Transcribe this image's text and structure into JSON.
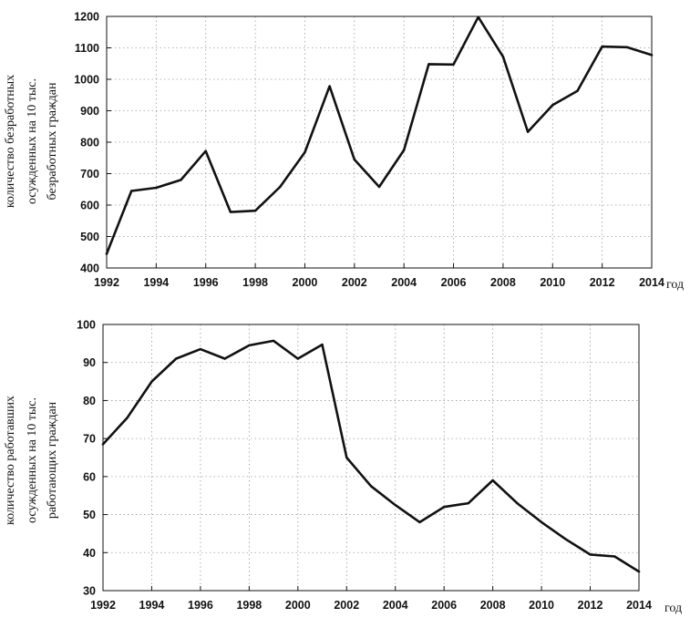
{
  "chart_data": [
    {
      "type": "line",
      "xlabel": "год",
      "ylabel": [
        "количество безработных",
        "осужденных на 10 тыс.",
        "безработных граждан"
      ],
      "xlim": [
        1992,
        2014
      ],
      "ylim": [
        400,
        1200
      ],
      "xticks": [
        "1992",
        "1994",
        "1996",
        "1998",
        "2000",
        "2002",
        "2004",
        "2006",
        "2008",
        "2010",
        "2012",
        "2014"
      ],
      "yticks": [
        "400",
        "500",
        "600",
        "700",
        "800",
        "900",
        "1000",
        "1100",
        "1200"
      ],
      "grid": true,
      "series": [
        {
          "x": [
            1992,
            1993,
            1994,
            1995,
            1996,
            1997,
            1998,
            1999,
            2000,
            2001,
            2002,
            2003,
            2004,
            2005,
            2006,
            2007,
            2008,
            2009,
            2010,
            2011,
            2012,
            2013,
            2014
          ],
          "values": [
            445,
            645,
            655,
            680,
            772,
            578,
            582,
            658,
            768,
            978,
            745,
            658,
            775,
            1048,
            1047,
            1198,
            1072,
            833,
            918,
            963,
            1104,
            1102,
            1077
          ]
        }
      ]
    },
    {
      "type": "line",
      "xlabel": "год",
      "ylabel": [
        "количество работавших",
        "осужденных на 10 тыс.",
        "работающих граждан"
      ],
      "xlim": [
        1992,
        2014
      ],
      "ylim": [
        30,
        100
      ],
      "xticks": [
        "1992",
        "1994",
        "1996",
        "1998",
        "2000",
        "2002",
        "2004",
        "2006",
        "2008",
        "2010",
        "2012",
        "2014"
      ],
      "yticks": [
        "30",
        "40",
        "50",
        "60",
        "70",
        "80",
        "90",
        "100"
      ],
      "grid": true,
      "series": [
        {
          "x": [
            1992,
            1993,
            1994,
            1995,
            1996,
            1997,
            1998,
            1999,
            2000,
            2001,
            2002,
            2003,
            2004,
            2005,
            2006,
            2007,
            2008,
            2009,
            2010,
            2011,
            2012,
            2013,
            2014
          ],
          "values": [
            68.5,
            75.5,
            85,
            91,
            93.5,
            91,
            94.5,
            95.7,
            91,
            94.7,
            65,
            57.5,
            52.5,
            48,
            52,
            53,
            59,
            53,
            48,
            43.5,
            39.5,
            39,
            35
          ]
        }
      ]
    }
  ]
}
